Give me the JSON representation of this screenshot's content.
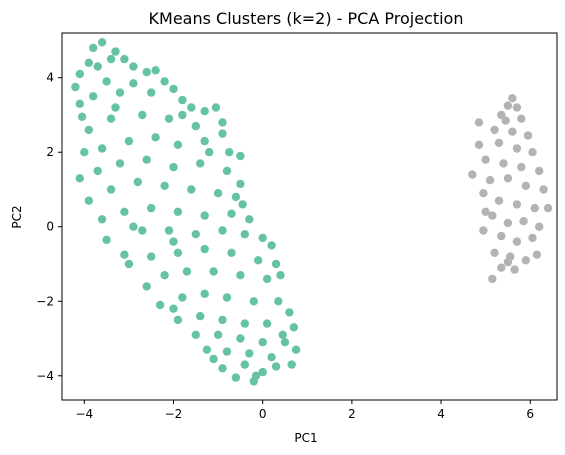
{
  "chart_data": {
    "type": "scatter",
    "title": "KMeans Clusters (k=2) - PCA Projection",
    "xlabel": "PC1",
    "ylabel": "PC2",
    "xlim": [
      -4.5,
      6.6
    ],
    "ylim": [
      -4.65,
      5.2
    ],
    "xticks": [
      -4,
      -2,
      0,
      2,
      4,
      6
    ],
    "yticks": [
      -4,
      -2,
      0,
      2,
      4
    ],
    "xtick_labels": [
      "−4",
      "−2",
      "0",
      "2",
      "4",
      "6"
    ],
    "ytick_labels": [
      "−4",
      "−2",
      "0",
      "2",
      "4"
    ],
    "grid": false,
    "legend": "none",
    "series": [
      {
        "color": "#66c2a5",
        "cluster": 0,
        "points": [
          [
            -3.8,
            4.8
          ],
          [
            -3.6,
            4.95
          ],
          [
            -3.3,
            4.7
          ],
          [
            -3.9,
            4.4
          ],
          [
            -3.4,
            4.5
          ],
          [
            -3.1,
            4.5
          ],
          [
            -4.1,
            4.1
          ],
          [
            -3.7,
            4.3
          ],
          [
            -2.9,
            4.3
          ],
          [
            -2.6,
            4.15
          ],
          [
            -2.4,
            4.2
          ],
          [
            -4.2,
            3.75
          ],
          [
            -3.5,
            3.9
          ],
          [
            -2.9,
            3.85
          ],
          [
            -2.2,
            3.9
          ],
          [
            -2.0,
            3.7
          ],
          [
            -4.1,
            3.3
          ],
          [
            -4.05,
            2.95
          ],
          [
            -3.8,
            3.5
          ],
          [
            -3.2,
            3.6
          ],
          [
            -2.5,
            3.6
          ],
          [
            -1.8,
            3.4
          ],
          [
            -1.6,
            3.2
          ],
          [
            -1.3,
            3.1
          ],
          [
            -1.05,
            3.2
          ],
          [
            -3.9,
            2.6
          ],
          [
            -3.4,
            2.9
          ],
          [
            -2.7,
            3.0
          ],
          [
            -2.1,
            2.9
          ],
          [
            -1.5,
            2.7
          ],
          [
            -0.9,
            2.8
          ],
          [
            -0.9,
            2.5
          ],
          [
            -4.0,
            2.0
          ],
          [
            -3.6,
            2.1
          ],
          [
            -3.0,
            2.3
          ],
          [
            -2.4,
            2.4
          ],
          [
            -1.9,
            2.2
          ],
          [
            -1.3,
            2.3
          ],
          [
            -0.75,
            2.0
          ],
          [
            -0.5,
            1.9
          ],
          [
            -4.1,
            1.3
          ],
          [
            -3.7,
            1.5
          ],
          [
            -3.2,
            1.7
          ],
          [
            -2.6,
            1.8
          ],
          [
            -2.0,
            1.6
          ],
          [
            -1.4,
            1.7
          ],
          [
            -0.8,
            1.5
          ],
          [
            -0.5,
            1.15
          ],
          [
            -3.9,
            0.7
          ],
          [
            -3.4,
            1.0
          ],
          [
            -2.8,
            1.2
          ],
          [
            -2.2,
            1.1
          ],
          [
            -1.6,
            1.0
          ],
          [
            -1.0,
            0.9
          ],
          [
            -0.6,
            0.8
          ],
          [
            -0.45,
            0.6
          ],
          [
            -3.6,
            0.2
          ],
          [
            -3.1,
            0.4
          ],
          [
            -2.5,
            0.5
          ],
          [
            -1.9,
            0.4
          ],
          [
            -1.3,
            0.3
          ],
          [
            -0.7,
            0.35
          ],
          [
            -0.3,
            0.2
          ],
          [
            -3.5,
            -0.35
          ],
          [
            -3.1,
            -0.75
          ],
          [
            -2.7,
            -0.1
          ],
          [
            -2.1,
            -0.1
          ],
          [
            -1.5,
            -0.2
          ],
          [
            -0.9,
            -0.1
          ],
          [
            -0.4,
            -0.2
          ],
          [
            0.0,
            -0.3
          ],
          [
            0.2,
            -0.5
          ],
          [
            -3.0,
            -1.0
          ],
          [
            -2.5,
            -0.8
          ],
          [
            -1.9,
            -0.7
          ],
          [
            -1.3,
            -0.6
          ],
          [
            -0.7,
            -0.7
          ],
          [
            -0.1,
            -0.9
          ],
          [
            0.3,
            -1.0
          ],
          [
            -2.6,
            -1.6
          ],
          [
            -2.2,
            -1.3
          ],
          [
            -1.7,
            -1.2
          ],
          [
            -1.1,
            -1.2
          ],
          [
            -0.5,
            -1.3
          ],
          [
            0.1,
            -1.4
          ],
          [
            0.4,
            -1.3
          ],
          [
            -2.3,
            -2.1
          ],
          [
            -1.8,
            -1.9
          ],
          [
            -1.3,
            -1.8
          ],
          [
            -0.8,
            -1.9
          ],
          [
            -0.2,
            -2.0
          ],
          [
            0.35,
            -2.0
          ],
          [
            0.6,
            -2.3
          ],
          [
            -1.9,
            -2.5
          ],
          [
            -1.4,
            -2.4
          ],
          [
            -0.9,
            -2.5
          ],
          [
            -0.4,
            -2.6
          ],
          [
            0.1,
            -2.6
          ],
          [
            0.7,
            -2.7
          ],
          [
            -1.5,
            -2.9
          ],
          [
            -1.0,
            -2.9
          ],
          [
            -0.5,
            -3.0
          ],
          [
            0.0,
            -3.1
          ],
          [
            0.5,
            -3.1
          ],
          [
            0.75,
            -3.3
          ],
          [
            -1.25,
            -3.3
          ],
          [
            -0.8,
            -3.35
          ],
          [
            -0.3,
            -3.4
          ],
          [
            0.2,
            -3.5
          ],
          [
            0.65,
            -3.7
          ],
          [
            -0.9,
            -3.8
          ],
          [
            -0.4,
            -3.7
          ],
          [
            0.0,
            -3.9
          ],
          [
            -0.6,
            -4.05
          ],
          [
            -0.15,
            -4.0
          ],
          [
            0.3,
            -3.75
          ],
          [
            -0.2,
            -4.15
          ],
          [
            -1.1,
            -3.55
          ],
          [
            -2.0,
            -0.4
          ],
          [
            -2.9,
            0.0
          ],
          [
            -1.2,
            2.0
          ],
          [
            -1.8,
            3.0
          ],
          [
            -3.3,
            3.2
          ],
          [
            -2.0,
            -2.2
          ],
          [
            0.45,
            -2.9
          ]
        ]
      },
      {
        "color": "#b3b3b3",
        "cluster": 1,
        "points": [
          [
            5.6,
            3.45
          ],
          [
            5.5,
            3.25
          ],
          [
            5.7,
            3.2
          ],
          [
            5.35,
            3.0
          ],
          [
            5.45,
            2.85
          ],
          [
            5.8,
            2.9
          ],
          [
            4.85,
            2.8
          ],
          [
            5.2,
            2.6
          ],
          [
            5.6,
            2.55
          ],
          [
            5.95,
            2.45
          ],
          [
            4.85,
            2.2
          ],
          [
            5.3,
            2.25
          ],
          [
            5.7,
            2.1
          ],
          [
            6.05,
            2.0
          ],
          [
            5.0,
            1.8
          ],
          [
            5.4,
            1.7
          ],
          [
            5.8,
            1.6
          ],
          [
            6.2,
            1.5
          ],
          [
            4.7,
            1.4
          ],
          [
            5.1,
            1.25
          ],
          [
            5.5,
            1.3
          ],
          [
            5.9,
            1.1
          ],
          [
            6.3,
            1.0
          ],
          [
            4.95,
            0.9
          ],
          [
            5.3,
            0.7
          ],
          [
            5.7,
            0.6
          ],
          [
            6.1,
            0.5
          ],
          [
            6.4,
            0.5
          ],
          [
            5.15,
            0.3
          ],
          [
            5.5,
            0.1
          ],
          [
            5.85,
            0.15
          ],
          [
            6.2,
            0.0
          ],
          [
            4.95,
            -0.1
          ],
          [
            5.35,
            -0.25
          ],
          [
            5.7,
            -0.4
          ],
          [
            6.05,
            -0.3
          ],
          [
            5.2,
            -0.7
          ],
          [
            5.55,
            -0.8
          ],
          [
            5.9,
            -0.9
          ],
          [
            5.35,
            -1.1
          ],
          [
            5.65,
            -1.15
          ],
          [
            5.15,
            -1.4
          ],
          [
            5.5,
            -0.95
          ],
          [
            6.15,
            -0.75
          ],
          [
            5.0,
            0.4
          ]
        ]
      }
    ]
  }
}
